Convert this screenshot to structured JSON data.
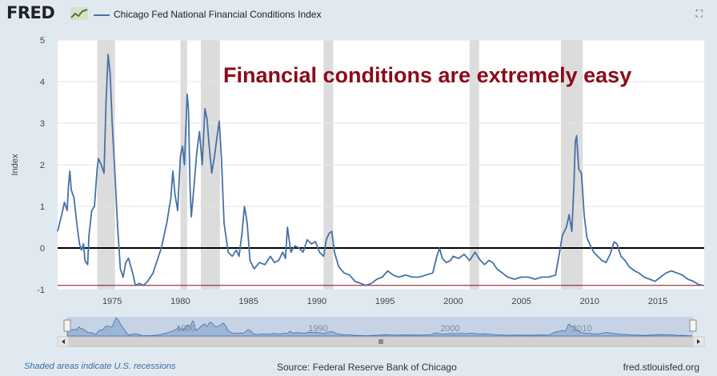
{
  "header": {
    "logo": "FRED",
    "title": "Chicago Fed National Financial Conditions Index"
  },
  "annotation": "Financial conditions are extremely easy",
  "footer": {
    "note": "Shaded areas indicate U.S. recessions",
    "source": "Source: Federal Reserve Bank of Chicago",
    "site": "fred.stlouisfed.org"
  },
  "navigator": {
    "labels": [
      "1980",
      "1990",
      "2000",
      "2010"
    ]
  },
  "colors": {
    "series": "#4572a7",
    "annotation": "#8b0a1a",
    "recession": "#dcdcdc",
    "zero_line": "#000000"
  },
  "chart_data": {
    "type": "line",
    "ylabel": "Index",
    "ylim": [
      -1,
      5
    ],
    "yticks": [
      -1,
      0,
      1,
      2,
      3,
      4,
      5
    ],
    "xlim": [
      1971,
      2018.4
    ],
    "xticks": [
      1975,
      1980,
      1985,
      1990,
      1995,
      2000,
      2005,
      2010,
      2015
    ],
    "recessions": [
      [
        1973.9,
        1975.2
      ],
      [
        1980.0,
        1980.5
      ],
      [
        1981.5,
        1982.9
      ],
      [
        1990.5,
        1991.2
      ],
      [
        2001.2,
        2001.9
      ],
      [
        2007.9,
        2009.5
      ]
    ],
    "reference_lines": [
      0,
      -0.9
    ],
    "series": [
      {
        "name": "Chicago Fed National Financial Conditions Index",
        "points": [
          [
            1971.0,
            0.4
          ],
          [
            1971.3,
            0.8
          ],
          [
            1971.5,
            1.1
          ],
          [
            1971.7,
            0.9
          ],
          [
            1971.8,
            1.5
          ],
          [
            1971.9,
            1.85
          ],
          [
            1972.0,
            1.4
          ],
          [
            1972.2,
            1.2
          ],
          [
            1972.4,
            0.6
          ],
          [
            1972.6,
            0.1
          ],
          [
            1972.75,
            -0.05
          ],
          [
            1972.9,
            0.1
          ],
          [
            1973.0,
            -0.3
          ],
          [
            1973.2,
            -0.4
          ],
          [
            1973.3,
            0.3
          ],
          [
            1973.5,
            0.9
          ],
          [
            1973.7,
            1.0
          ],
          [
            1973.9,
            1.9
          ],
          [
            1974.0,
            2.15
          ],
          [
            1974.2,
            2.0
          ],
          [
            1974.4,
            1.8
          ],
          [
            1974.55,
            3.5
          ],
          [
            1974.7,
            4.65
          ],
          [
            1974.85,
            4.2
          ],
          [
            1975.0,
            3.0
          ],
          [
            1975.2,
            1.8
          ],
          [
            1975.4,
            0.5
          ],
          [
            1975.6,
            -0.5
          ],
          [
            1975.8,
            -0.7
          ],
          [
            1976.0,
            -0.35
          ],
          [
            1976.2,
            -0.25
          ],
          [
            1976.5,
            -0.6
          ],
          [
            1976.7,
            -0.9
          ],
          [
            1977.0,
            -0.85
          ],
          [
            1977.3,
            -0.9
          ],
          [
            1977.6,
            -0.8
          ],
          [
            1978.0,
            -0.6
          ],
          [
            1978.3,
            -0.3
          ],
          [
            1978.6,
            0.0
          ],
          [
            1979.0,
            0.6
          ],
          [
            1979.3,
            1.2
          ],
          [
            1979.45,
            1.85
          ],
          [
            1979.6,
            1.3
          ],
          [
            1979.8,
            0.9
          ],
          [
            1980.0,
            2.2
          ],
          [
            1980.15,
            2.45
          ],
          [
            1980.3,
            2.0
          ],
          [
            1980.5,
            3.7
          ],
          [
            1980.6,
            3.3
          ],
          [
            1980.7,
            1.5
          ],
          [
            1980.8,
            0.75
          ],
          [
            1981.0,
            1.5
          ],
          [
            1981.2,
            2.3
          ],
          [
            1981.4,
            2.8
          ],
          [
            1981.6,
            2.0
          ],
          [
            1981.8,
            3.35
          ],
          [
            1981.95,
            3.1
          ],
          [
            1982.1,
            2.5
          ],
          [
            1982.3,
            1.8
          ],
          [
            1982.5,
            2.2
          ],
          [
            1982.7,
            2.7
          ],
          [
            1982.85,
            3.05
          ],
          [
            1983.0,
            2.2
          ],
          [
            1983.2,
            0.6
          ],
          [
            1983.5,
            -0.1
          ],
          [
            1983.8,
            -0.2
          ],
          [
            1984.1,
            -0.05
          ],
          [
            1984.3,
            -0.2
          ],
          [
            1984.5,
            0.3
          ],
          [
            1984.7,
            1.0
          ],
          [
            1984.9,
            0.6
          ],
          [
            1985.1,
            -0.3
          ],
          [
            1985.4,
            -0.5
          ],
          [
            1985.8,
            -0.35
          ],
          [
            1986.2,
            -0.4
          ],
          [
            1986.6,
            -0.2
          ],
          [
            1986.9,
            -0.35
          ],
          [
            1987.2,
            -0.3
          ],
          [
            1987.5,
            -0.1
          ],
          [
            1987.7,
            -0.25
          ],
          [
            1987.85,
            0.5
          ],
          [
            1988.1,
            -0.1
          ],
          [
            1988.4,
            0.05
          ],
          [
            1988.7,
            0.0
          ],
          [
            1989.0,
            -0.1
          ],
          [
            1989.3,
            0.2
          ],
          [
            1989.6,
            0.1
          ],
          [
            1989.9,
            0.15
          ],
          [
            1990.2,
            -0.1
          ],
          [
            1990.5,
            -0.2
          ],
          [
            1990.7,
            0.2
          ],
          [
            1990.9,
            0.35
          ],
          [
            1991.1,
            0.4
          ],
          [
            1991.3,
            -0.1
          ],
          [
            1991.6,
            -0.45
          ],
          [
            1992.0,
            -0.6
          ],
          [
            1992.4,
            -0.65
          ],
          [
            1992.8,
            -0.8
          ],
          [
            1993.2,
            -0.85
          ],
          [
            1993.6,
            -0.9
          ],
          [
            1994.0,
            -0.85
          ],
          [
            1994.4,
            -0.75
          ],
          [
            1994.8,
            -0.7
          ],
          [
            1995.2,
            -0.55
          ],
          [
            1995.6,
            -0.65
          ],
          [
            1996.0,
            -0.7
          ],
          [
            1996.5,
            -0.65
          ],
          [
            1997.0,
            -0.7
          ],
          [
            1997.5,
            -0.7
          ],
          [
            1998.0,
            -0.65
          ],
          [
            1998.5,
            -0.6
          ],
          [
            1998.8,
            -0.2
          ],
          [
            1999.0,
            0.0
          ],
          [
            1999.2,
            -0.25
          ],
          [
            1999.5,
            -0.35
          ],
          [
            1999.8,
            -0.3
          ],
          [
            2000.0,
            -0.2
          ],
          [
            2000.4,
            -0.25
          ],
          [
            2000.8,
            -0.15
          ],
          [
            2001.2,
            -0.3
          ],
          [
            2001.6,
            -0.1
          ],
          [
            2002.0,
            -0.3
          ],
          [
            2002.3,
            -0.4
          ],
          [
            2002.6,
            -0.3
          ],
          [
            2002.9,
            -0.35
          ],
          [
            2003.2,
            -0.5
          ],
          [
            2003.6,
            -0.6
          ],
          [
            2004.0,
            -0.7
          ],
          [
            2004.5,
            -0.75
          ],
          [
            2005.0,
            -0.7
          ],
          [
            2005.5,
            -0.7
          ],
          [
            2006.0,
            -0.75
          ],
          [
            2006.5,
            -0.7
          ],
          [
            2007.0,
            -0.7
          ],
          [
            2007.5,
            -0.65
          ],
          [
            2007.8,
            -0.1
          ],
          [
            2008.0,
            0.3
          ],
          [
            2008.3,
            0.5
          ],
          [
            2008.5,
            0.8
          ],
          [
            2008.7,
            0.4
          ],
          [
            2008.85,
            1.5
          ],
          [
            2008.95,
            2.55
          ],
          [
            2009.05,
            2.7
          ],
          [
            2009.2,
            1.9
          ],
          [
            2009.4,
            1.8
          ],
          [
            2009.6,
            0.8
          ],
          [
            2009.8,
            0.25
          ],
          [
            2010.0,
            0.1
          ],
          [
            2010.3,
            -0.1
          ],
          [
            2010.6,
            -0.2
          ],
          [
            2010.9,
            -0.3
          ],
          [
            2011.2,
            -0.35
          ],
          [
            2011.5,
            -0.15
          ],
          [
            2011.8,
            0.15
          ],
          [
            2012.0,
            0.1
          ],
          [
            2012.3,
            -0.2
          ],
          [
            2012.6,
            -0.3
          ],
          [
            2012.9,
            -0.45
          ],
          [
            2013.3,
            -0.55
          ],
          [
            2013.6,
            -0.6
          ],
          [
            2014.0,
            -0.7
          ],
          [
            2014.4,
            -0.75
          ],
          [
            2014.8,
            -0.8
          ],
          [
            2015.2,
            -0.7
          ],
          [
            2015.6,
            -0.6
          ],
          [
            2016.0,
            -0.55
          ],
          [
            2016.4,
            -0.6
          ],
          [
            2016.8,
            -0.65
          ],
          [
            2017.2,
            -0.75
          ],
          [
            2017.6,
            -0.8
          ],
          [
            2018.0,
            -0.88
          ],
          [
            2018.3,
            -0.9
          ]
        ]
      }
    ]
  }
}
